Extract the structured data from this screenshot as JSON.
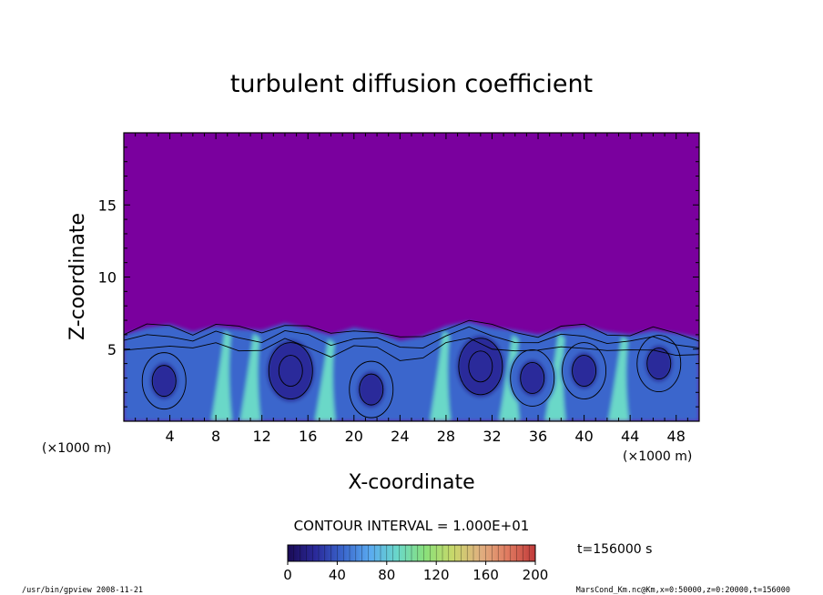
{
  "chart_data": {
    "type": "heatmap",
    "title": "turbulent diffusion coefficient",
    "xlabel": "X-coordinate",
    "ylabel": "Z-coordinate",
    "x_unit_label": "(×1000 m)",
    "y_unit_label": "(×1000 m)",
    "xlim": [
      0,
      50
    ],
    "ylim": [
      0,
      20
    ],
    "x_ticks": [
      4,
      8,
      12,
      16,
      20,
      24,
      28,
      32,
      36,
      40,
      44,
      48
    ],
    "y_ticks": [
      5,
      10,
      15
    ],
    "contour_interval_text": "CONTOUR INTERVAL = 1.000E+01",
    "colorbar": {
      "range": [
        0,
        200
      ],
      "ticks": [
        0,
        40,
        80,
        120,
        160,
        200
      ],
      "colors": [
        "#1a0a55",
        "#2a2a9a",
        "#3a66cc",
        "#5aaaf0",
        "#6ad8c8",
        "#8ae07a",
        "#c8d86a",
        "#e0b080",
        "#e07a60",
        "#c03a3a"
      ]
    },
    "background_color": "#7a009e",
    "time_label": "t=156000 s",
    "boundary_layer_top": [
      [
        0,
        6.0
      ],
      [
        2,
        6.5
      ],
      [
        4,
        6.7
      ],
      [
        6,
        6.2
      ],
      [
        8,
        6.6
      ],
      [
        10,
        6.4
      ],
      [
        12,
        6.3
      ],
      [
        14,
        6.8
      ],
      [
        16,
        6.4
      ],
      [
        18,
        6.0
      ],
      [
        20,
        6.5
      ],
      [
        22,
        6.2
      ],
      [
        24,
        5.6
      ],
      [
        26,
        5.9
      ],
      [
        28,
        6.6
      ],
      [
        30,
        6.9
      ],
      [
        32,
        6.5
      ],
      [
        34,
        6.3
      ],
      [
        36,
        6.0
      ],
      [
        38,
        6.4
      ],
      [
        40,
        6.6
      ],
      [
        42,
        6.2
      ],
      [
        44,
        6.0
      ],
      [
        46,
        6.3
      ],
      [
        48,
        6.1
      ],
      [
        50,
        5.8
      ]
    ],
    "eddies": [
      {
        "x": 3.5,
        "z": 2.8,
        "value": 55
      },
      {
        "x": 14.5,
        "z": 3.5,
        "value": 45
      },
      {
        "x": 21.5,
        "z": 2.2,
        "value": 50
      },
      {
        "x": 31.0,
        "z": 3.8,
        "value": 45
      },
      {
        "x": 35.5,
        "z": 3.0,
        "value": 55
      },
      {
        "x": 40.0,
        "z": 3.5,
        "value": 50
      },
      {
        "x": 46.5,
        "z": 4.0,
        "value": 50
      }
    ],
    "plumes": [
      {
        "x": 8.5,
        "value": 95
      },
      {
        "x": 11.0,
        "value": 90
      },
      {
        "x": 17.5,
        "value": 85
      },
      {
        "x": 27.5,
        "value": 95
      },
      {
        "x": 33.5,
        "value": 90
      },
      {
        "x": 37.5,
        "value": 90
      },
      {
        "x": 43.0,
        "value": 85
      }
    ]
  },
  "footer": {
    "left": "/usr/bin/gpview   2008-11-21",
    "right": "MarsCond_Km.nc@Km,x=0:50000,z=0:20000,t=156000"
  }
}
